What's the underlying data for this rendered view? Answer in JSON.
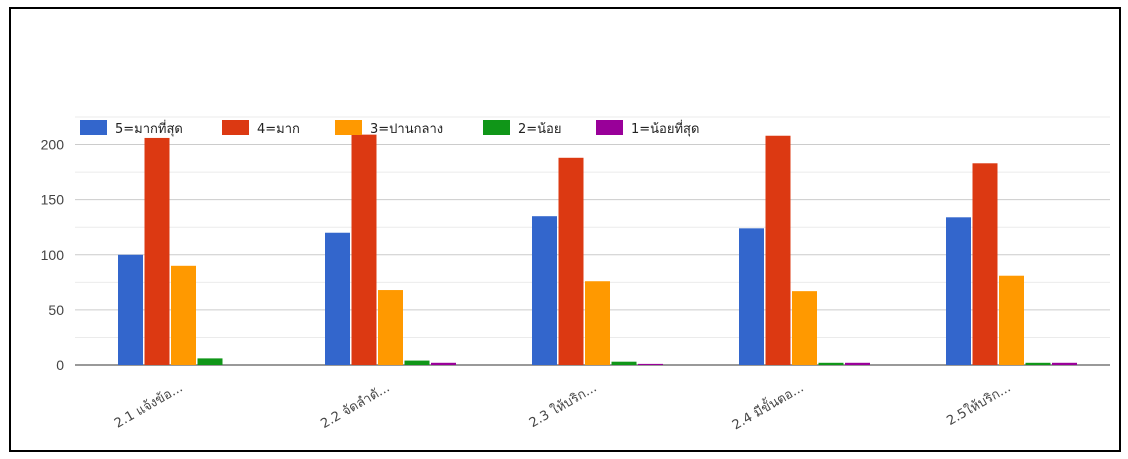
{
  "chart_data": {
    "type": "bar",
    "categories": [
      "2.1 แจ้งข้อ...",
      "2.2 จัดลำดั...",
      "2.3 ให้บริก...",
      "2.4 มีขั้นตอ...",
      "2.5ให้บริก..."
    ],
    "series": [
      {
        "name": "5=มากที่สุด",
        "color": "#3366cc",
        "values": [
          100,
          120,
          135,
          124,
          134
        ]
      },
      {
        "name": "4=มาก",
        "color": "#dc3912",
        "values": [
          206,
          209,
          188,
          208,
          183
        ]
      },
      {
        "name": "3=ปานกลาง",
        "color": "#ff9900",
        "values": [
          90,
          68,
          76,
          67,
          81
        ]
      },
      {
        "name": "2=น้อย",
        "color": "#109618",
        "values": [
          6,
          4,
          3,
          2,
          2
        ]
      },
      {
        "name": "1=น้อยที่สุด",
        "color": "#990099",
        "values": [
          0,
          2,
          1,
          2,
          2
        ]
      }
    ],
    "yticks": [
      0,
      50,
      100,
      150,
      200
    ],
    "ylim": [
      0,
      225
    ],
    "grid": true,
    "legend_position": "top"
  }
}
